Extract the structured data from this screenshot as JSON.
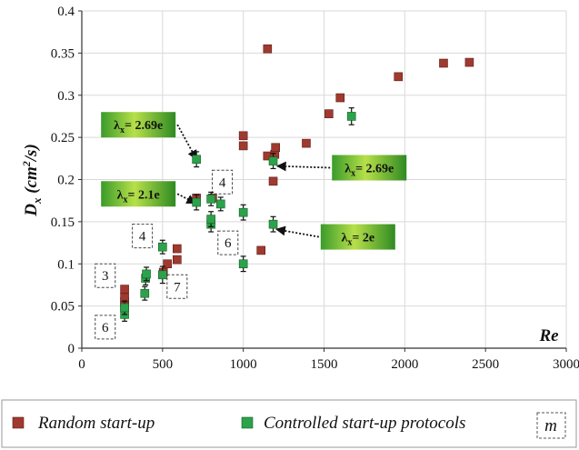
{
  "chart_data": {
    "type": "scatter",
    "xlabel": "Re",
    "ylabel": "D_x (cm²/s)",
    "ylabel_parts": {
      "main": "D",
      "sub": "x",
      "unit_open": " (cm",
      "unit_sup": "2",
      "unit_close": "/s)"
    },
    "xlim": [
      0,
      3000
    ],
    "ylim": [
      0,
      0.4
    ],
    "x_ticks": [
      "0",
      "500",
      "1000",
      "1500",
      "2000",
      "2500",
      "3000"
    ],
    "y_ticks": [
      "0",
      "0.05",
      "0.1",
      "0.15",
      "0.2",
      "0.25",
      "0.3",
      "0.35",
      "0.4"
    ],
    "grid": true,
    "legend_position": "bottom",
    "series": [
      {
        "name": "Random start-up",
        "color": "#a0392f",
        "marker": "square",
        "points": [
          [
            265,
            0.07
          ],
          [
            265,
            0.055
          ],
          [
            265,
            0.05
          ],
          [
            265,
            0.06
          ],
          [
            505,
            0.09
          ],
          [
            530,
            0.1
          ],
          [
            590,
            0.105
          ],
          [
            590,
            0.118
          ],
          [
            710,
            0.178
          ],
          [
            810,
            0.178
          ],
          [
            1000,
            0.24
          ],
          [
            1000,
            0.252
          ],
          [
            1110,
            0.116
          ],
          [
            1150,
            0.355
          ],
          [
            1150,
            0.228
          ],
          [
            1185,
            0.198
          ],
          [
            1195,
            0.23
          ],
          [
            1200,
            0.238
          ],
          [
            1390,
            0.243
          ],
          [
            1530,
            0.278
          ],
          [
            1600,
            0.297
          ],
          [
            1960,
            0.322
          ],
          [
            2240,
            0.338
          ],
          [
            2400,
            0.339
          ]
        ]
      },
      {
        "name": "Controlled start-up protocols",
        "color": "#2ca24a",
        "marker": "square",
        "points": [
          [
            265,
            0.04,
            0.008
          ],
          [
            265,
            0.048,
            0.008
          ],
          [
            390,
            0.065,
            0.008
          ],
          [
            395,
            0.083,
            0.008
          ],
          [
            400,
            0.088,
            0.008
          ],
          [
            500,
            0.087,
            0.01
          ],
          [
            500,
            0.12,
            0.008
          ],
          [
            710,
            0.224,
            0.009
          ],
          [
            710,
            0.173,
            0.009
          ],
          [
            800,
            0.147,
            0.009
          ],
          [
            800,
            0.153,
            0.009
          ],
          [
            800,
            0.177,
            0.008
          ],
          [
            860,
            0.171,
            0.008
          ],
          [
            1000,
            0.161,
            0.009
          ],
          [
            1000,
            0.1,
            0.009
          ],
          [
            1185,
            0.147,
            0.009
          ],
          [
            1185,
            0.222,
            0.009
          ],
          [
            1670,
            0.275,
            0.01
          ]
        ]
      }
    ],
    "annotations": [
      {
        "text": "λx= 2.69e",
        "pre": "λ",
        "sub": "x",
        "post": "= 2.69e",
        "box_at": [
          350,
          0.265
        ],
        "arrow_to": [
          710,
          0.224
        ]
      },
      {
        "text": "λx= 2.1e",
        "pre": "λ",
        "sub": "x",
        "post": "= 2.1e",
        "box_at": [
          350,
          0.183
        ],
        "arrow_to": [
          705,
          0.172
        ]
      },
      {
        "text": "λx= 2.69e",
        "pre": "λ",
        "sub": "x",
        "post": "= 2.69e",
        "box_at": [
          1780,
          0.214
        ],
        "arrow_to": [
          1210,
          0.216
        ]
      },
      {
        "text": "λx= 2e",
        "pre": "λ",
        "sub": "x",
        "post": "= 2e",
        "box_at": [
          1710,
          0.132
        ],
        "arrow_to": [
          1205,
          0.141
        ]
      }
    ],
    "count_boxes": [
      {
        "label": "3",
        "x": 145,
        "y": 0.086
      },
      {
        "label": "6",
        "x": 145,
        "y": 0.025
      },
      {
        "label": "4",
        "x": 375,
        "y": 0.133
      },
      {
        "label": "7",
        "x": 590,
        "y": 0.073
      },
      {
        "label": "4",
        "x": 870,
        "y": 0.197
      },
      {
        "label": "6",
        "x": 905,
        "y": 0.125
      }
    ],
    "legend": {
      "random_label": "Random start-up",
      "controlled_label": "Controlled start-up protocols",
      "box_label": "m"
    }
  }
}
